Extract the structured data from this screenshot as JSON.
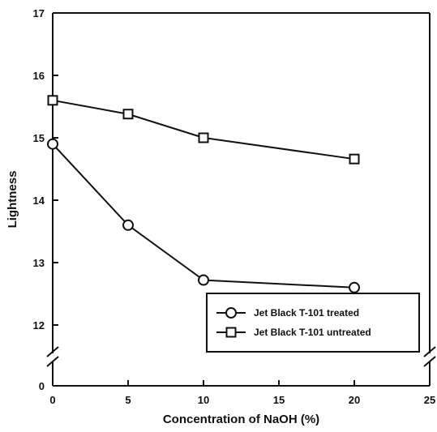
{
  "chart_data": {
    "type": "line",
    "title": "",
    "xlabel": "Concentration of NaOH (%)",
    "ylabel": "Lightness",
    "xlim": [
      0,
      25
    ],
    "ylim": [
      11.5,
      17
    ],
    "broken_y_axis": true,
    "y_break_label": "0",
    "x_ticks": [
      0,
      5,
      10,
      15,
      20,
      25
    ],
    "x_tick_labels": [
      "0",
      "5",
      "10",
      "15",
      "20",
      "25"
    ],
    "y_ticks": [
      12,
      13,
      14,
      15,
      16,
      17
    ],
    "y_tick_labels": [
      "12",
      "13",
      "14",
      "15",
      "16",
      "17"
    ],
    "grid": false,
    "legend_position": "bottom-right",
    "series": [
      {
        "name": "Jet Black T-101 treated",
        "marker": "circle",
        "x": [
          0,
          5,
          10,
          20
        ],
        "y": [
          14.9,
          13.6,
          12.72,
          12.6
        ]
      },
      {
        "name": "Jet Black T-101 untreated",
        "marker": "square",
        "x": [
          0,
          5,
          10,
          20
        ],
        "y": [
          15.6,
          15.38,
          15.0,
          14.66
        ]
      }
    ]
  }
}
